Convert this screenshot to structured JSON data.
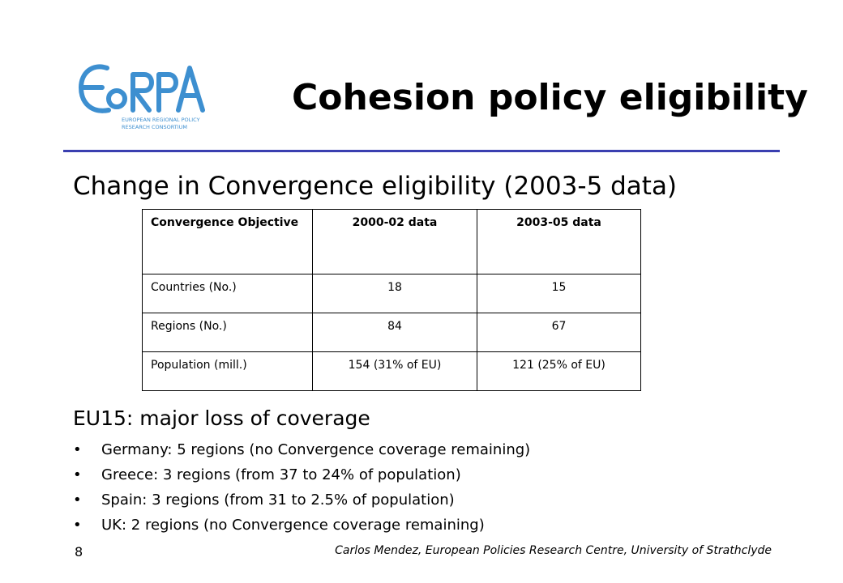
{
  "logo": {
    "wordmark": "EoRPA",
    "tagline_line1": "EUROPEAN REGIONAL POLICY",
    "tagline_line2": "RESEARCH CONSORTIUM",
    "color": "#3d8fd0"
  },
  "title": "Cohesion policy eligibility",
  "subtitle": "Change in Convergence eligibility (2003-5 data)",
  "table": {
    "headers": [
      "Convergence Objective",
      "2000-02 data",
      "2003-05 data"
    ],
    "rows": [
      [
        "Countries (No.)",
        "18",
        "15"
      ],
      [
        "Regions (No.)",
        "84",
        "67"
      ],
      [
        "Population (mill.)",
        "154 (31% of EU)",
        "121 (25% of EU)"
      ]
    ]
  },
  "section_heading": "EU15: major loss of coverage",
  "bullets": [
    "Germany: 5 regions (no Convergence coverage remaining)",
    "Greece: 3 regions (from 37 to 24% of population)",
    "Spain: 3 regions (from 31 to 2.5% of population)",
    "UK: 2 regions (no Convergence coverage remaining)"
  ],
  "bullet_symbol": "•",
  "page_number": "8",
  "footer": "Carlos Mendez, European Policies Research Centre, University of Strathclyde",
  "colors": {
    "title_rule": "#3a3fb0",
    "logo_blue": "#3d8fd0"
  }
}
